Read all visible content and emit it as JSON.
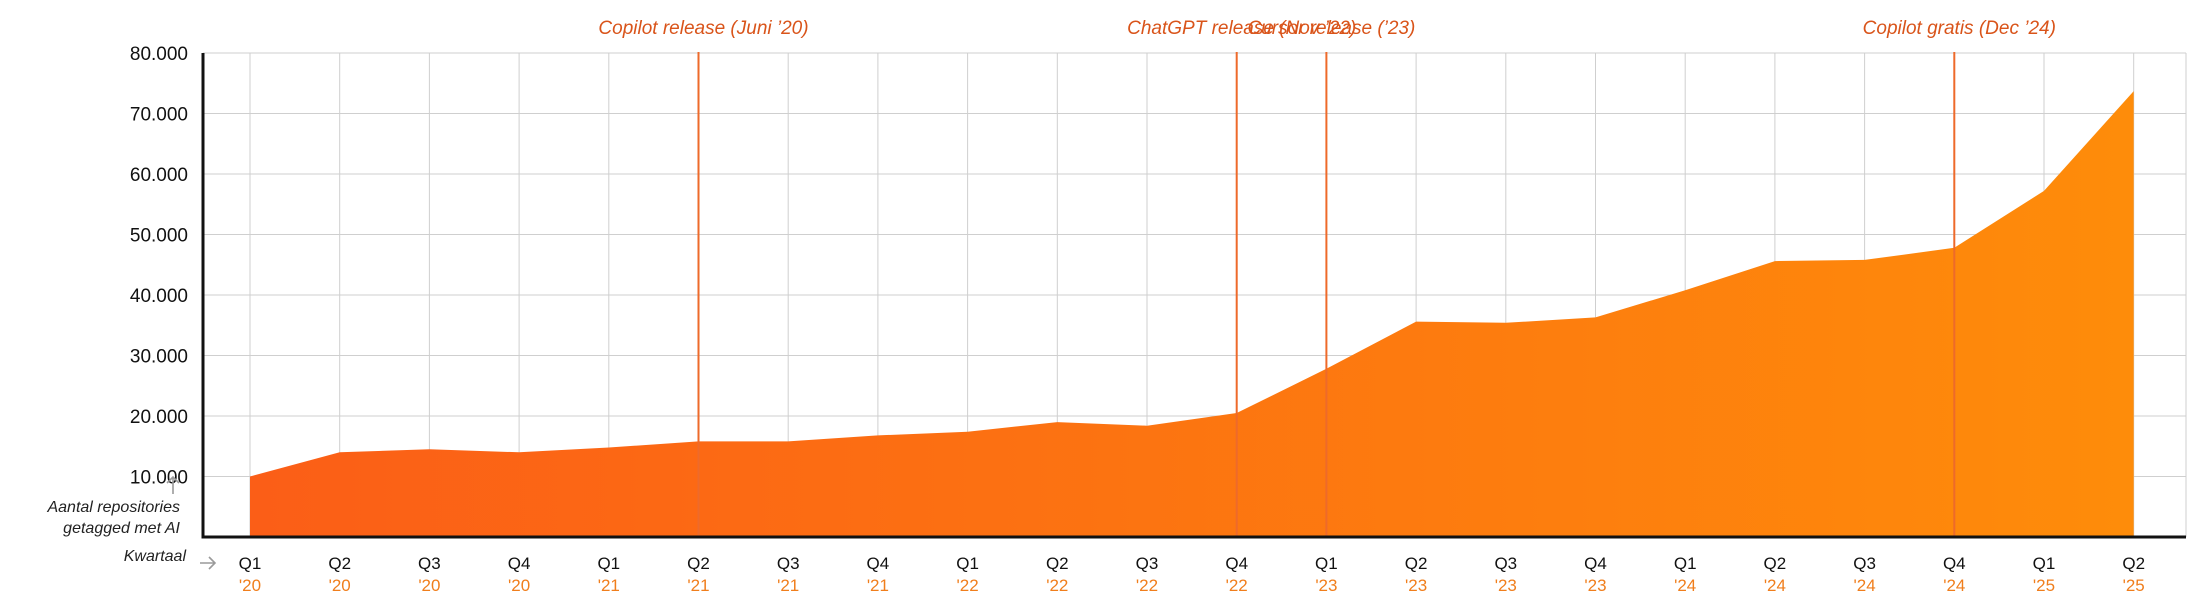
{
  "chart_data": {
    "type": "area",
    "categories": [
      {
        "quarter": "Q1",
        "year": "'20"
      },
      {
        "quarter": "Q2",
        "year": "'20"
      },
      {
        "quarter": "Q3",
        "year": "'20"
      },
      {
        "quarter": "Q4",
        "year": "'20"
      },
      {
        "quarter": "Q1",
        "year": "'21"
      },
      {
        "quarter": "Q2",
        "year": "'21"
      },
      {
        "quarter": "Q3",
        "year": "'21"
      },
      {
        "quarter": "Q4",
        "year": "'21"
      },
      {
        "quarter": "Q1",
        "year": "'22"
      },
      {
        "quarter": "Q2",
        "year": "'22"
      },
      {
        "quarter": "Q3",
        "year": "'22"
      },
      {
        "quarter": "Q4",
        "year": "'22"
      },
      {
        "quarter": "Q1",
        "year": "'23"
      },
      {
        "quarter": "Q2",
        "year": "'23"
      },
      {
        "quarter": "Q3",
        "year": "'23"
      },
      {
        "quarter": "Q4",
        "year": "'23"
      },
      {
        "quarter": "Q1",
        "year": "'24"
      },
      {
        "quarter": "Q2",
        "year": "'24"
      },
      {
        "quarter": "Q3",
        "year": "'24"
      },
      {
        "quarter": "Q4",
        "year": "'24"
      },
      {
        "quarter": "Q1",
        "year": "'25"
      },
      {
        "quarter": "Q2",
        "year": "'25"
      }
    ],
    "values": [
      10000,
      14000,
      14500,
      14000,
      14800,
      15800,
      15800,
      16800,
      17400,
      19000,
      18400,
      20500,
      27800,
      35600,
      35400,
      36300,
      40800,
      45600,
      45800,
      47800,
      57200,
      73700
    ],
    "ylim": [
      0,
      80000
    ],
    "yticks": [
      {
        "value": 10000,
        "label": "10.000"
      },
      {
        "value": 20000,
        "label": "20.000"
      },
      {
        "value": 30000,
        "label": "30.000"
      },
      {
        "value": 40000,
        "label": "40.000"
      },
      {
        "value": 50000,
        "label": "50.000"
      },
      {
        "value": 60000,
        "label": "60.000"
      },
      {
        "value": 70000,
        "label": "70.000"
      },
      {
        "value": 80000,
        "label": "80.000"
      }
    ],
    "ylabel_lines": [
      "Aantal repositories",
      "getagged met AI"
    ],
    "xlabel": "Kwartaal",
    "grid": true,
    "gradient_colors": [
      "#fb5e17",
      "#fe8c0a"
    ],
    "annotation_color": "#ee6a2a",
    "annotations": [
      {
        "text": "Copilot release (Juni ’20)",
        "category_index": 5
      },
      {
        "text": "ChatGPT release (Nov ’22)",
        "category_index": 11
      },
      {
        "text": "Cursor release (’23)",
        "category_index": 12
      },
      {
        "text": "Copilot gratis (Dec ’24)",
        "category_index": 19
      }
    ]
  }
}
